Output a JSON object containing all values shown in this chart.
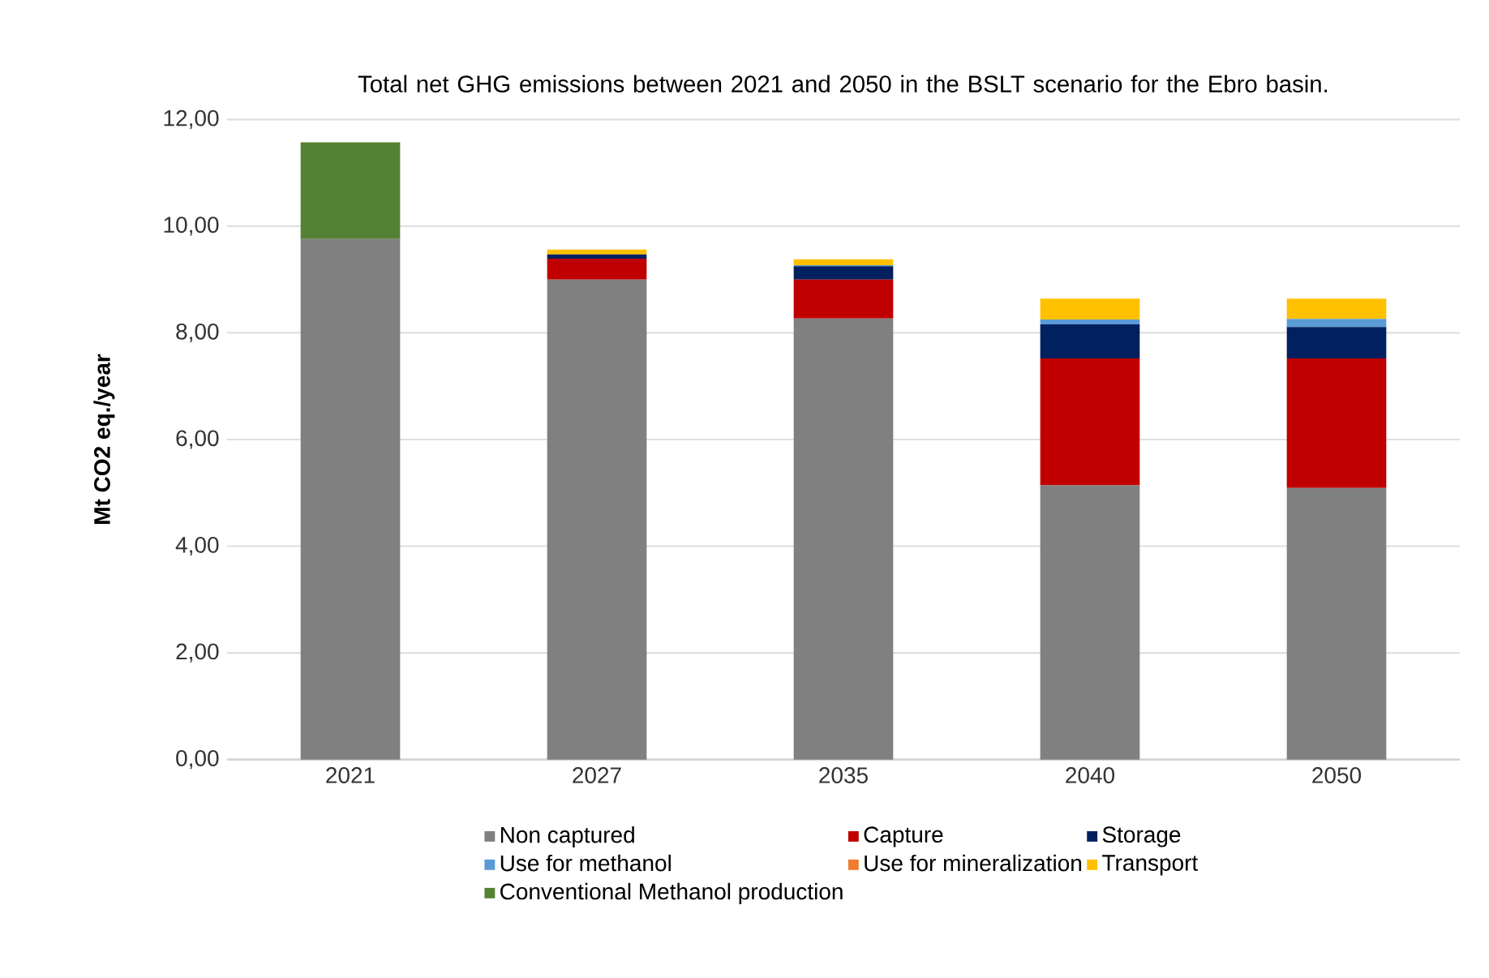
{
  "chart_data": {
    "type": "bar",
    "stacked": true,
    "title": "Total net GHG emissions between 2021 and 2050 in the BSLT scenario for the Ebro basin.",
    "ylabel": "Mt CO2 eq./year",
    "categories": [
      "2021",
      "2027",
      "2035",
      "2040",
      "2050"
    ],
    "series": [
      {
        "name": "Non captured",
        "color": "#808080",
        "values": [
          9.76,
          9.0,
          8.27,
          5.14,
          5.09
        ]
      },
      {
        "name": "Capture",
        "color": "#c00000",
        "values": [
          0,
          0.39,
          0.73,
          2.38,
          2.43
        ]
      },
      {
        "name": "Storage",
        "color": "#002060",
        "values": [
          0,
          0.08,
          0.25,
          0.64,
          0.59
        ]
      },
      {
        "name": "Use for methanol",
        "color": "#5b9bd5",
        "values": [
          0,
          0,
          0.02,
          0.09,
          0.15
        ]
      },
      {
        "name": "Use for mineralization",
        "color": "#ed7d31",
        "values": [
          0,
          0,
          0,
          0,
          0
        ]
      },
      {
        "name": "Transport",
        "color": "#ffc000",
        "values": [
          0,
          0.09,
          0.11,
          0.39,
          0.38
        ]
      },
      {
        "name": "Conventional Methanol production",
        "color": "#548235",
        "values": [
          1.81,
          0,
          0,
          0,
          0
        ]
      }
    ],
    "ylim": [
      0,
      12
    ],
    "yticks": [
      {
        "value": 0,
        "label": "0,00"
      },
      {
        "value": 2,
        "label": "2,00"
      },
      {
        "value": 4,
        "label": "4,00"
      },
      {
        "value": 6,
        "label": "6,00"
      },
      {
        "value": 8,
        "label": "8,00"
      },
      {
        "value": 10,
        "label": "10,00"
      },
      {
        "value": 12,
        "label": "12,00"
      }
    ],
    "grid": "y",
    "legend": "bottom"
  }
}
